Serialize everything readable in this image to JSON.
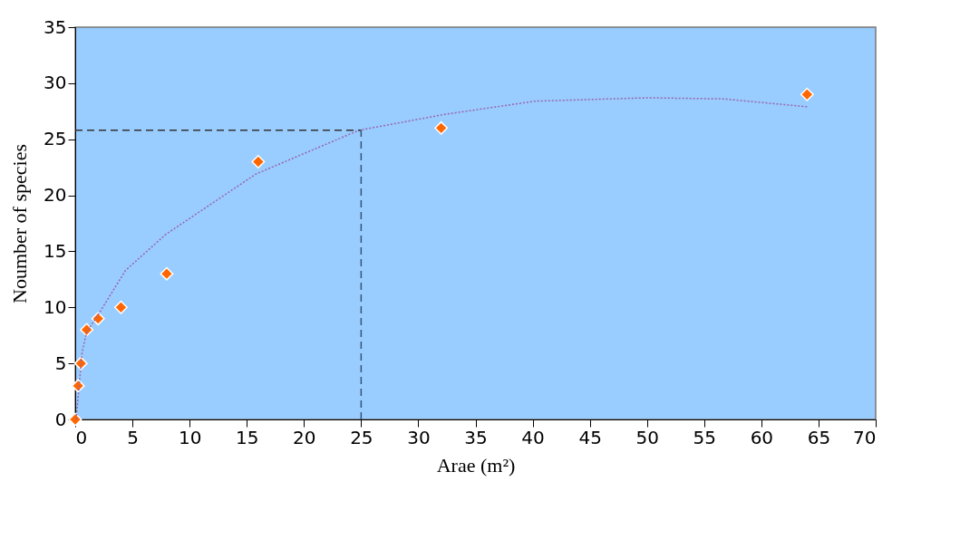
{
  "chart_data": {
    "type": "scatter",
    "xlabel": "Arae (m²)",
    "ylabel": "Noumber of species",
    "xlim": [
      0,
      70
    ],
    "ylim": [
      0,
      35
    ],
    "xticks": [
      0,
      5,
      10,
      15,
      20,
      25,
      30,
      35,
      40,
      45,
      50,
      55,
      60,
      65,
      70
    ],
    "yticks": [
      0,
      5,
      10,
      15,
      20,
      25,
      30,
      35
    ],
    "grid": false,
    "series": [
      {
        "color": "#ff6600",
        "marker": "diamond",
        "x": [
          0,
          0.25,
          0.5,
          1,
          2,
          4,
          8,
          16,
          32,
          64
        ],
        "values": [
          0,
          3,
          5,
          8,
          9,
          10,
          13,
          23,
          26,
          29
        ]
      },
      {
        "type": "line",
        "color": "#9966aa",
        "line_style": "dotted",
        "marker": "none",
        "x": [
          0.08,
          0.6,
          1.0,
          2.1,
          4.4,
          7.9,
          15.8,
          24.8,
          32.2,
          40.2,
          50.1,
          56.7,
          64
        ],
        "values": [
          0,
          6.0,
          7.8,
          9.5,
          13.3,
          16.5,
          21.9,
          25.8,
          27.2,
          28.4,
          28.7,
          28.6,
          27.9
        ]
      },
      {
        "type": "line",
        "color": "#333333",
        "line_style": "dashed",
        "marker": "none",
        "x": [
          0,
          25
        ],
        "values": [
          25.8,
          25.8
        ]
      },
      {
        "type": "line",
        "color": "#335577",
        "line_style": "dashed",
        "marker": "none",
        "x": [
          25,
          25
        ],
        "values": [
          0,
          25.8
        ]
      }
    ]
  }
}
